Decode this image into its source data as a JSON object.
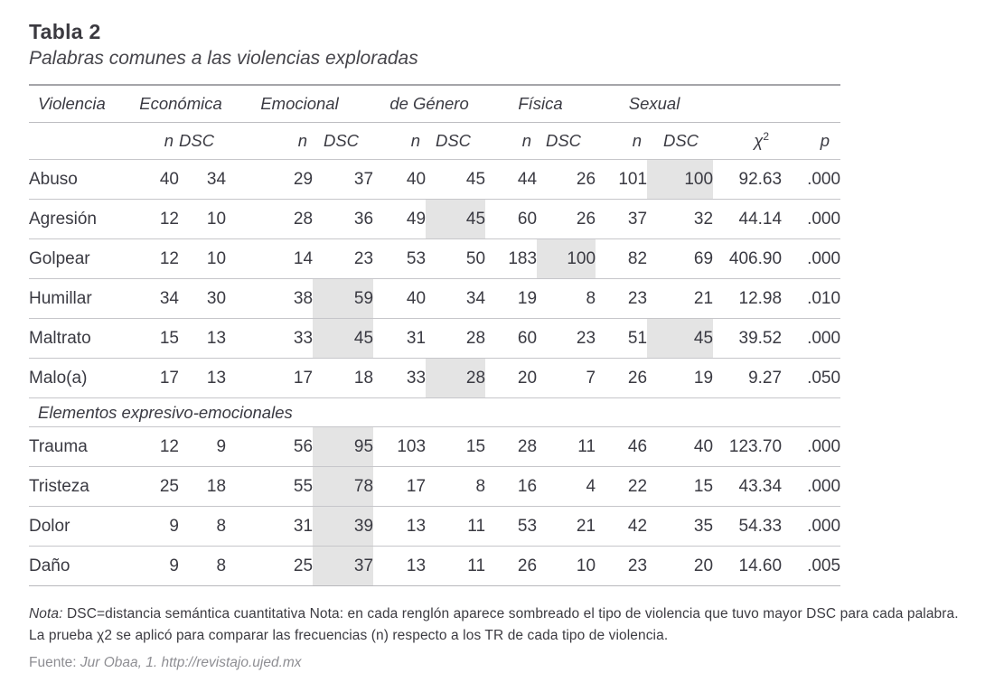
{
  "page": {
    "title": "Tabla 2",
    "subtitle": "Palabras comunes a las violencias exploradas"
  },
  "table": {
    "row_header_label": "Violencia",
    "groups": [
      {
        "label": "Económica"
      },
      {
        "label": "Emocional"
      },
      {
        "label": "de Género"
      },
      {
        "label": "Física"
      },
      {
        "label": "Sexual"
      }
    ],
    "subheaders": {
      "n": "n",
      "dsc": "DSC",
      "chi2_base": "χ",
      "chi2_sup": "2",
      "p": "p"
    },
    "shading_color": "#e4e4e4",
    "sections": [
      {
        "label": "",
        "rows": [
          {
            "word": "Abuso",
            "cells": [
              "40",
              "34",
              "29",
              "37",
              "40",
              "45",
              "44",
              "26",
              "101",
              "100"
            ],
            "shaded": [
              9
            ],
            "chi2": "92.63",
            "p": ".000"
          },
          {
            "word": "Agresión",
            "cells": [
              "12",
              "10",
              "28",
              "36",
              "49",
              "45",
              "60",
              "26",
              "37",
              "32"
            ],
            "shaded": [
              5
            ],
            "chi2": "44.14",
            "p": ".000"
          },
          {
            "word": "Golpear",
            "cells": [
              "12",
              "10",
              "14",
              "23",
              "53",
              "50",
              "183",
              "100",
              "82",
              "69"
            ],
            "shaded": [
              7
            ],
            "chi2": "406.90",
            "p": ".000"
          },
          {
            "word": "Humillar",
            "cells": [
              "34",
              "30",
              "38",
              "59",
              "40",
              "34",
              "19",
              "8",
              "23",
              "21"
            ],
            "shaded": [
              3
            ],
            "chi2": "12.98",
            "p": ".010"
          },
          {
            "word": "Maltrato",
            "cells": [
              "15",
              "13",
              "33",
              "45",
              "31",
              "28",
              "60",
              "23",
              "51",
              "45"
            ],
            "shaded": [
              3,
              9
            ],
            "chi2": "39.52",
            "p": ".000"
          },
          {
            "word": "Malo(a)",
            "cells": [
              "17",
              "13",
              "17",
              "18",
              "33",
              "28",
              "20",
              "7",
              "26",
              "19"
            ],
            "shaded": [
              5
            ],
            "chi2": "9.27",
            "p": ".050"
          }
        ]
      },
      {
        "label": "Elementos expresivo-emocionales",
        "rows": [
          {
            "word": "Trauma",
            "cells": [
              "12",
              "9",
              "56",
              "95",
              "103",
              "15",
              "28",
              "11",
              "46",
              "40"
            ],
            "shaded": [
              3
            ],
            "chi2": "123.70",
            "p": ".000"
          },
          {
            "word": "Tristeza",
            "cells": [
              "25",
              "18",
              "55",
              "78",
              "17",
              "8",
              "16",
              "4",
              "22",
              "15"
            ],
            "shaded": [
              3
            ],
            "chi2": "43.34",
            "p": ".000"
          },
          {
            "word": "Dolor",
            "cells": [
              "9",
              "8",
              "31",
              "39",
              "13",
              "11",
              "53",
              "21",
              "42",
              "35"
            ],
            "shaded": [
              3
            ],
            "chi2": "54.33",
            "p": ".000"
          },
          {
            "word": "Daño",
            "cells": [
              "9",
              "8",
              "25",
              "37",
              "13",
              "11",
              "26",
              "10",
              "23",
              "20"
            ],
            "shaded": [
              3
            ],
            "chi2": "14.60",
            "p": ".005"
          }
        ]
      }
    ]
  },
  "footer": {
    "note_label": "Nota:",
    "note_text": " DSC=distancia semántica cuantitativa Nota: en cada renglón aparece sombreado el tipo de violencia que tuvo mayor DSC para cada palabra. La prueba χ2 se aplicó para comparar las frecuencias (n) respecto a los TR de cada tipo de violencia.",
    "source_label": "Fuente: ",
    "source_text": "Jur Obaa, 1. http://revistajo.ujed.mx"
  }
}
